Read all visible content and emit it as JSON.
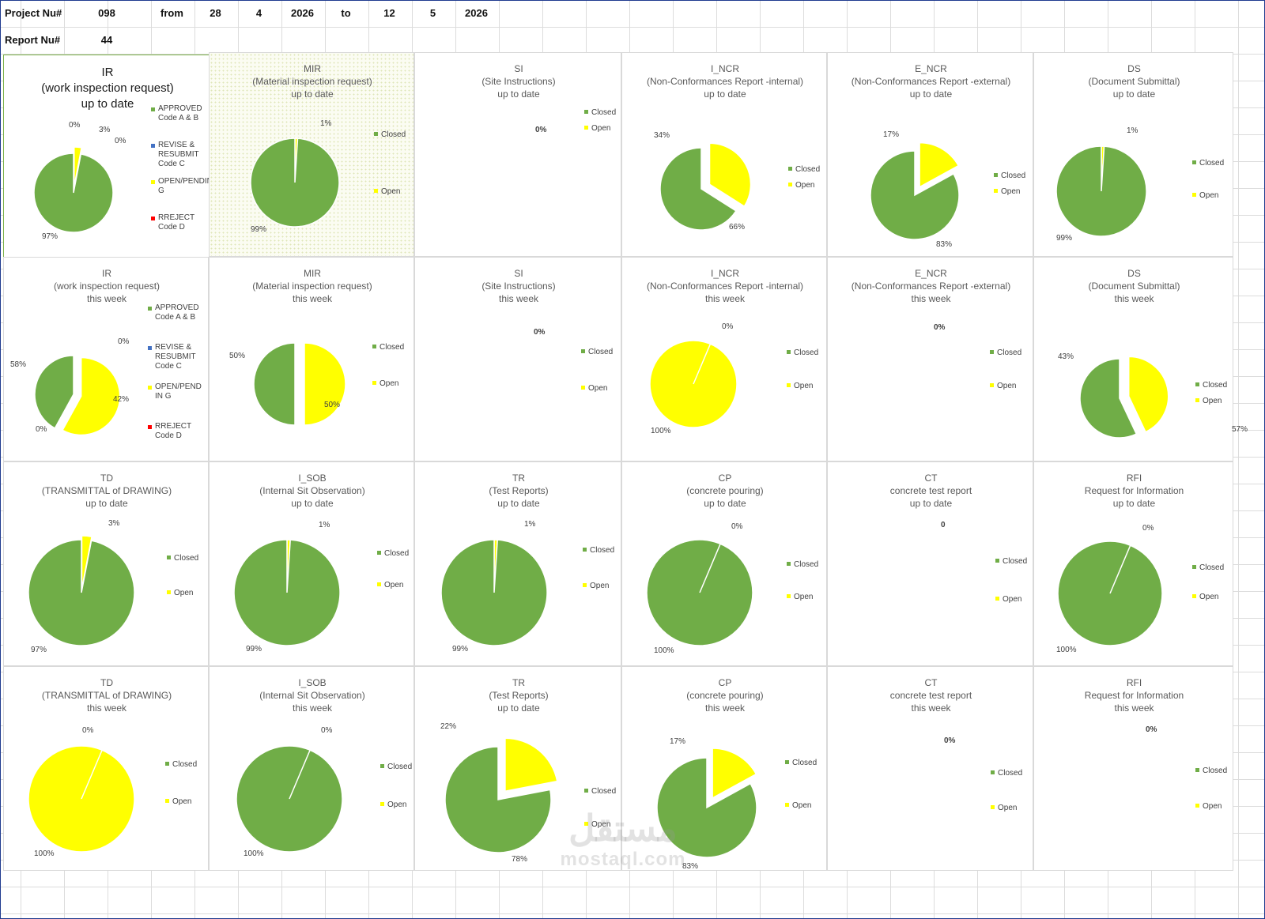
{
  "header": {
    "project_label": "Project Nu#",
    "project_value": "098",
    "from_label": "from",
    "from_day": "28",
    "from_month": "4",
    "from_year": "2026",
    "to_label": "to",
    "to_day": "12",
    "to_month": "5",
    "to_year": "2026",
    "report_label": "Report Nu#",
    "report_value": "44"
  },
  "colors": {
    "closed": "#70ad47",
    "open": "#ffff00",
    "revise": "#4472c4",
    "reject": "#ff0000"
  },
  "watermark": {
    "arabic": "مستقل",
    "latin": "mostaql.com"
  },
  "chart_data": [
    {
      "type": "pie",
      "title": [
        "IR",
        "(work inspection request)",
        "up to date"
      ],
      "categories": [
        "APPROVED Code A & B",
        "REVISE & RESUBMIT Code C",
        "OPEN/PENDIN G",
        "RREJECT Code D"
      ],
      "values": [
        97,
        0,
        3,
        0
      ],
      "labels": [
        "97%",
        "0%",
        "3%",
        "0%"
      ],
      "legend": "right"
    },
    {
      "type": "pie",
      "title": [
        "MIR",
        "(Material inspection request)",
        "up to date"
      ],
      "categories": [
        "Closed",
        "Open"
      ],
      "values": [
        99,
        1
      ],
      "labels": [
        "99%",
        "1%"
      ],
      "legend": "right"
    },
    {
      "type": "pie",
      "title": [
        "SI",
        "(Site Instructions)",
        "up to date"
      ],
      "categories": [
        "Closed",
        "Open"
      ],
      "values": [
        0,
        0
      ],
      "labels": [
        "0%"
      ],
      "legend": "right"
    },
    {
      "type": "pie",
      "title": [
        "I_NCR",
        "(Non-Conformances Report -internal)",
        "up to date"
      ],
      "categories": [
        "Closed",
        "Open"
      ],
      "values": [
        66,
        34
      ],
      "labels": [
        "66%",
        "34%"
      ],
      "legend": "right"
    },
    {
      "type": "pie",
      "title": [
        "E_NCR",
        "(Non-Conformances Report -external)",
        "up to date"
      ],
      "categories": [
        "Closed",
        "Open"
      ],
      "values": [
        83,
        17
      ],
      "labels": [
        "83%",
        "17%"
      ],
      "legend": "right"
    },
    {
      "type": "pie",
      "title": [
        "DS",
        "(Document Submittal)",
        "up to date"
      ],
      "categories": [
        "Closed",
        "Open"
      ],
      "values": [
        99,
        1
      ],
      "labels": [
        "99%",
        "1%"
      ],
      "legend": "right"
    },
    {
      "type": "pie",
      "title": [
        "IR",
        "(work inspection request)",
        "this week"
      ],
      "categories": [
        "APPROVED Code A & B",
        "REVISE & RESUBMIT Code C",
        "OPEN/PEND IN G",
        "RREJECT Code D"
      ],
      "values": [
        42,
        0,
        58,
        0
      ],
      "labels": [
        "42%",
        "0%",
        "58%",
        "0%"
      ],
      "legend": "right"
    },
    {
      "type": "pie",
      "title": [
        "MIR",
        "(Material inspection request)",
        "this week"
      ],
      "categories": [
        "Closed",
        "Open"
      ],
      "values": [
        50,
        50
      ],
      "labels": [
        "50%",
        "50%"
      ],
      "legend": "right"
    },
    {
      "type": "pie",
      "title": [
        "SI",
        "(Site Instructions)",
        "this week"
      ],
      "categories": [
        "Closed",
        "Open"
      ],
      "values": [
        0,
        0
      ],
      "labels": [
        "0%"
      ],
      "legend": "right"
    },
    {
      "type": "pie",
      "title": [
        "I_NCR",
        "(Non-Conformances Report -internal)",
        "this week"
      ],
      "categories": [
        "Closed",
        "Open"
      ],
      "values": [
        0,
        100
      ],
      "labels": [
        "0%",
        "100%"
      ],
      "legend": "right"
    },
    {
      "type": "pie",
      "title": [
        "E_NCR",
        "(Non-Conformances Report -external)",
        "this week"
      ],
      "categories": [
        "Closed",
        "Open"
      ],
      "values": [
        0,
        0
      ],
      "labels": [
        "0%"
      ],
      "legend": "right"
    },
    {
      "type": "pie",
      "title": [
        "DS",
        "(Document Submittal)",
        "this week"
      ],
      "categories": [
        "Closed",
        "Open"
      ],
      "values": [
        57,
        43
      ],
      "labels": [
        "57%",
        "43%"
      ],
      "legend": "right"
    },
    {
      "type": "pie",
      "title": [
        "TD",
        "(TRANSMITTAL of DRAWING)",
        "up to date"
      ],
      "categories": [
        "Closed",
        "Open"
      ],
      "values": [
        97,
        3
      ],
      "labels": [
        "97%",
        "3%"
      ],
      "legend": "right"
    },
    {
      "type": "pie",
      "title": [
        "I_SOB",
        "(Internal Sit Observation)",
        "up to date"
      ],
      "categories": [
        "Closed",
        "Open"
      ],
      "values": [
        99,
        1
      ],
      "labels": [
        "99%",
        "1%"
      ],
      "legend": "right"
    },
    {
      "type": "pie",
      "title": [
        "TR",
        "(Test Reports)",
        "up to date"
      ],
      "categories": [
        "Closed",
        "Open"
      ],
      "values": [
        99,
        1
      ],
      "labels": [
        "99%",
        "1%"
      ],
      "legend": "right"
    },
    {
      "type": "pie",
      "title": [
        "CP",
        "(concrete pouring)",
        "up to date"
      ],
      "categories": [
        "Closed",
        "Open"
      ],
      "values": [
        100,
        0
      ],
      "labels": [
        "100%",
        "0%"
      ],
      "legend": "right"
    },
    {
      "type": "pie",
      "title": [
        "CT",
        "concrete test report",
        "up to date"
      ],
      "categories": [
        "Closed",
        "Open"
      ],
      "values": [
        0,
        0
      ],
      "labels": [
        "0"
      ],
      "legend": "right"
    },
    {
      "type": "pie",
      "title": [
        "RFI",
        "Request for Information",
        "up to date"
      ],
      "categories": [
        "Closed",
        "Open"
      ],
      "values": [
        100,
        0
      ],
      "labels": [
        "100%",
        "0%"
      ],
      "legend": "right"
    },
    {
      "type": "pie",
      "title": [
        "TD",
        "(TRANSMITTAL of DRAWING)",
        "this week"
      ],
      "categories": [
        "Closed",
        "Open"
      ],
      "values": [
        0,
        100
      ],
      "labels": [
        "0%",
        "100%"
      ],
      "legend": "right"
    },
    {
      "type": "pie",
      "title": [
        "I_SOB",
        "(Internal Sit Observation)",
        "this week"
      ],
      "categories": [
        "Closed",
        "Open"
      ],
      "values": [
        100,
        0
      ],
      "labels": [
        "100%",
        "0%"
      ],
      "legend": "right"
    },
    {
      "type": "pie",
      "title": [
        "TR",
        "(Test Reports)",
        "up to date"
      ],
      "categories": [
        "Closed",
        "Open"
      ],
      "values": [
        78,
        22
      ],
      "labels": [
        "78%",
        "22%"
      ],
      "legend": "right"
    },
    {
      "type": "pie",
      "title": [
        "CP",
        "(concrete pouring)",
        "this week"
      ],
      "categories": [
        "Closed",
        "Open"
      ],
      "values": [
        83,
        17
      ],
      "labels": [
        "83%",
        "17%"
      ],
      "legend": "right"
    },
    {
      "type": "pie",
      "title": [
        "CT",
        "concrete test report",
        "this week"
      ],
      "categories": [
        "Closed",
        "Open"
      ],
      "values": [
        0,
        0
      ],
      "labels": [
        "0%"
      ],
      "legend": "right"
    },
    {
      "type": "pie",
      "title": [
        "RFI",
        "Request for Information",
        "this week"
      ],
      "categories": [
        "Closed",
        "Open"
      ],
      "values": [
        0,
        0
      ],
      "labels": [
        "0%"
      ],
      "legend": "right"
    }
  ]
}
